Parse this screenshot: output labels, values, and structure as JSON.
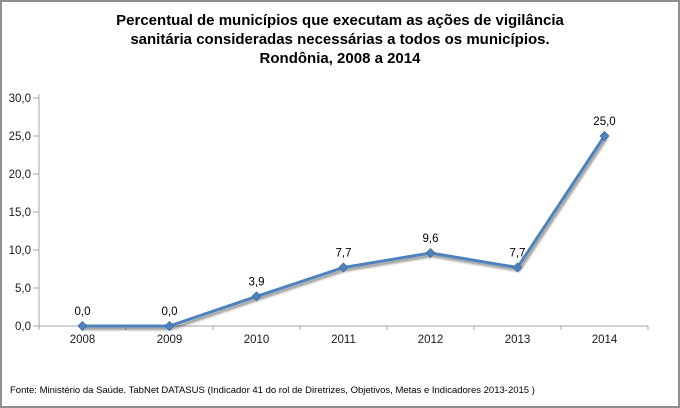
{
  "title": {
    "lines": [
      "Percentual de municípios que executam as ações de vigilância",
      "sanitária consideradas necessárias a todos os municípios.",
      "Rondônia, 2008 a 2014"
    ]
  },
  "footer": {
    "text": "Fonte: Ministério da Saúde. TabNet DATASUS (Indicador 41 do rol de Diretrizes, Objetivos, Metas e Indicadores 2013-2015 )"
  },
  "chart_data": {
    "type": "line",
    "categories": [
      "2008",
      "2009",
      "2010",
      "2011",
      "2012",
      "2013",
      "2014"
    ],
    "series": [
      {
        "values": [
          0.0,
          0.0,
          3.9,
          7.7,
          9.6,
          7.7,
          25.0
        ],
        "point_labels": [
          "0,0",
          "0,0",
          "3,9",
          "7,7",
          "9,6",
          "7,7",
          "25,0"
        ]
      }
    ],
    "title": "Percentual de municípios que executam as ações de vigilância sanitária consideradas necessárias a todos os municípios. Rondônia, 2008 a 2014",
    "xlabel": "",
    "ylabel": "",
    "ylim": [
      0,
      30
    ],
    "y_tick_step": 5,
    "y_tick_labels": [
      "0,0",
      "5,0",
      "10,0",
      "15,0",
      "20,0",
      "25,0",
      "30,0"
    ],
    "grid": false,
    "legend": "none",
    "line_color": "#4F81BD",
    "marker": "diamond",
    "marker_color": "#4F81BD",
    "marker_edge_color": "#3F6DA3",
    "axis_color": "#a6a6a6",
    "tick_label_color": "#1a1a1a",
    "data_label_color": "#000000"
  }
}
